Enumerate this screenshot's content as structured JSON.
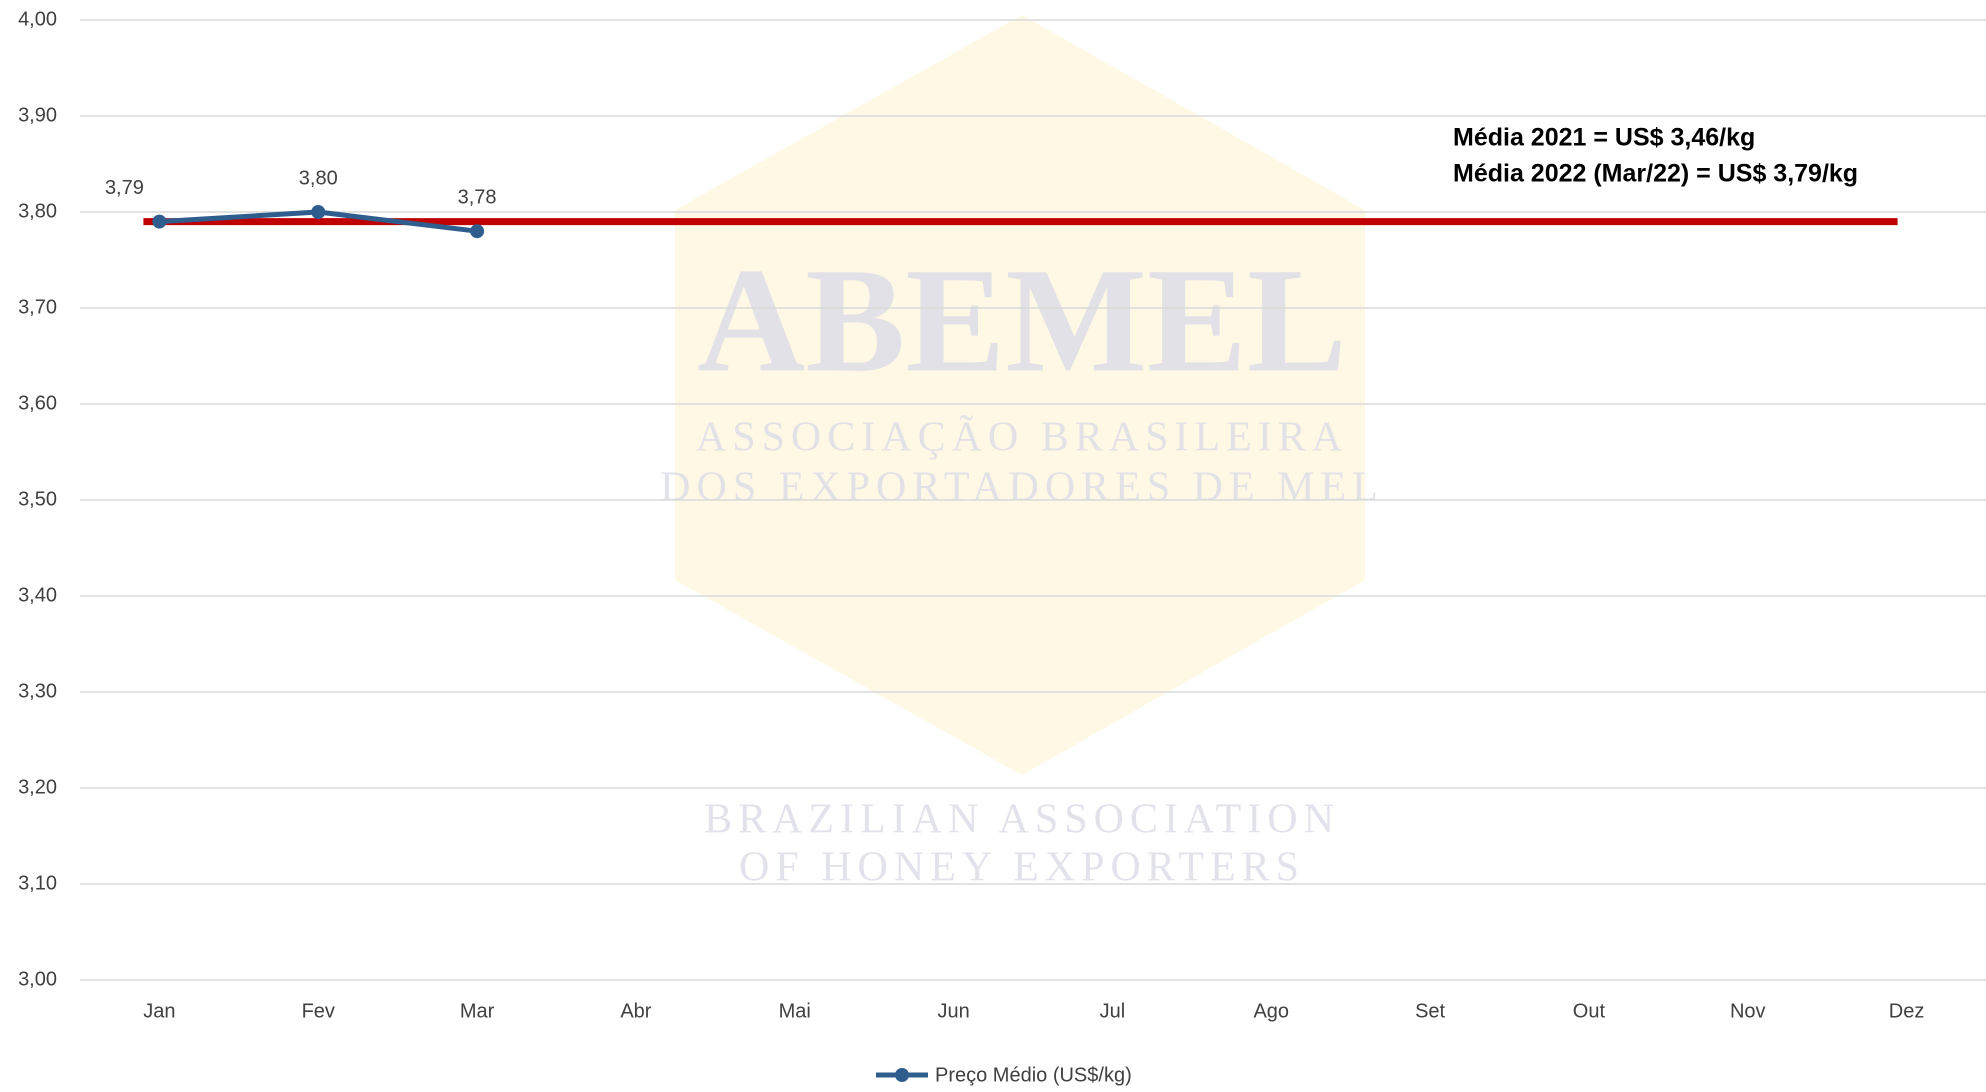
{
  "chart_data": {
    "type": "line",
    "categories": [
      "Jan",
      "Fev",
      "Mar",
      "Abr",
      "Mai",
      "Jun",
      "Jul",
      "Ago",
      "Set",
      "Out",
      "Nov",
      "Dez"
    ],
    "series": [
      {
        "name": "Preço Médio (US$/kg)",
        "color": "#2f5e8e",
        "values": [
          3.79,
          3.8,
          3.78,
          null,
          null,
          null,
          null,
          null,
          null,
          null,
          null,
          null
        ],
        "value_labels": [
          "3,79",
          "3,80",
          "3,78",
          null,
          null,
          null,
          null,
          null,
          null,
          null,
          null,
          null
        ]
      }
    ],
    "reference_line": {
      "value": 3.79,
      "color": "#c00000"
    },
    "annotations": [
      "Média 2021 = US$ 3,46/kg",
      "Média 2022 (Mar/22) = US$ 3,79/kg"
    ],
    "watermark": [
      "ABEMEL",
      "ASSOCIAÇÃO BRASILEIRA",
      "DOS EXPORTADORES DE MEL",
      "BRAZILIAN ASSOCIATION",
      "OF HONEY EXPORTERS"
    ],
    "ylim": [
      3.0,
      4.0
    ],
    "yticks": [
      {
        "value": 3.0,
        "label": "3,00"
      },
      {
        "value": 3.1,
        "label": "3,10"
      },
      {
        "value": 3.2,
        "label": "3,20"
      },
      {
        "value": 3.3,
        "label": "3,30"
      },
      {
        "value": 3.4,
        "label": "3,40"
      },
      {
        "value": 3.5,
        "label": "3,50"
      },
      {
        "value": 3.6,
        "label": "3,60"
      },
      {
        "value": 3.7,
        "label": "3,70"
      },
      {
        "value": 3.8,
        "label": "3,80"
      },
      {
        "value": 3.9,
        "label": "3,90"
      },
      {
        "value": 4.0,
        "label": "4,00"
      }
    ],
    "grid": true,
    "legend": "bottom"
  }
}
